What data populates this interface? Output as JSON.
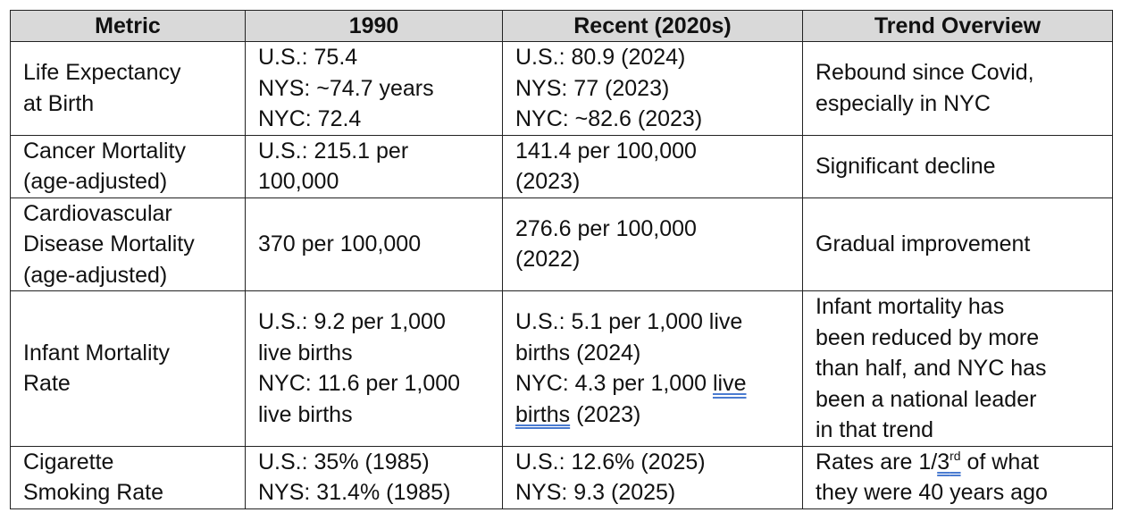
{
  "table": {
    "headers": [
      "Metric",
      "1990",
      "Recent (2020s)",
      "Trend Overview"
    ],
    "rows": [
      {
        "metric": [
          "Life Expectancy",
          "at Birth"
        ],
        "y1990": [
          "U.S.: 75.4",
          "NYS: ~74.7 years",
          "NYC: 72.4"
        ],
        "recent": [
          "U.S.: 80.9 (2024)",
          "NYS: 77 (2023)",
          "NYC: ~82.6 (2023)"
        ],
        "trend": [
          "Rebound since Covid,",
          "especially in NYC"
        ]
      },
      {
        "metric": [
          "Cancer Mortality",
          "(age-adjusted)"
        ],
        "y1990": [
          "U.S.: 215.1 per",
          "100,000"
        ],
        "recent": [
          "141.4 per 100,000",
          "(2023)"
        ],
        "trend": [
          "Significant decline"
        ]
      },
      {
        "metric": [
          "Cardiovascular",
          "Disease Mortality",
          "(age-adjusted)"
        ],
        "y1990": [
          "370 per 100,000"
        ],
        "recent": [
          "276.6 per 100,000",
          "(2022)"
        ],
        "trend": [
          "Gradual improvement"
        ]
      },
      {
        "metric": [
          "Infant Mortality",
          "Rate"
        ],
        "y1990": [
          "U.S.: 9.2 per 1,000",
          "live births",
          "NYC: 11.6 per 1,000",
          "live births"
        ],
        "recent": {
          "line1": "U.S.: 5.1 per 1,000 live",
          "line2": "births (2024)",
          "line3_pre": "NYC: 4.3 per 1,000 ",
          "line3_link": "live",
          "line4_link": "births",
          "line4_post": " (2023)"
        },
        "trend": [
          "Infant mortality has",
          "been reduced by more",
          "than half, and NYC has",
          "been a national leader",
          "in that trend"
        ]
      },
      {
        "metric": [
          "Cigarette",
          "Smoking Rate"
        ],
        "y1990": [
          "U.S.: 35% (1985)",
          "NYS: 31.4% (1985)"
        ],
        "recent": [
          "U.S.: 12.6% (2025)",
          "NYS: 9.3 (2025)"
        ],
        "trend": {
          "line1_pre": "Rates are 1/",
          "line1_num": "3",
          "line1_sup": "rd",
          "line1_post": " of what",
          "line2": "they were 40 years ago"
        }
      }
    ]
  }
}
